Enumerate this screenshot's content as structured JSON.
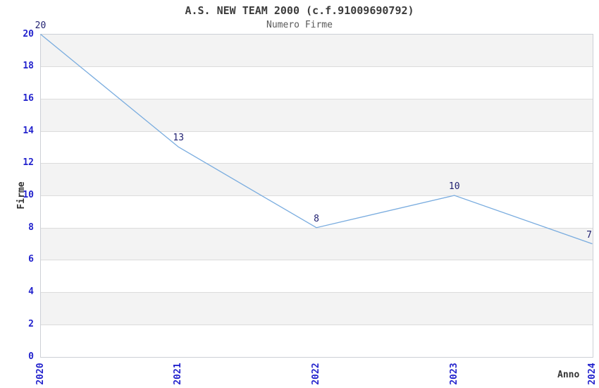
{
  "title": "A.S. NEW TEAM 2000 (c.f.91009690792)",
  "subtitle": "Numero Firme",
  "chart_data": {
    "type": "line",
    "title": "A.S. NEW TEAM 2000 (c.f.91009690792)",
    "subtitle": "Numero Firme",
    "x": [
      2020,
      2021,
      2022,
      2023,
      2024
    ],
    "values": [
      20,
      13,
      8,
      10,
      7
    ],
    "point_labels": [
      "20",
      "13",
      "8",
      "10",
      "7"
    ],
    "xlabel": "Anno",
    "ylabel": "Firme",
    "xlim": [
      2020,
      2024
    ],
    "ylim": [
      0,
      20
    ],
    "ytick_step": 2,
    "yticks": [
      0,
      2,
      4,
      6,
      8,
      10,
      12,
      14,
      16,
      18,
      20
    ],
    "grid": "horizontal-only",
    "legend": "none",
    "colors": {
      "line": "#79acdf",
      "tick_label": "#2323cd",
      "point_label": "#1f1f70",
      "band_gray": "#f3f3f3",
      "gridline": "#dcdcdc",
      "axis_text": "#333333",
      "title_text": "#3c3c3c",
      "subtitle_text": "#595959"
    }
  }
}
